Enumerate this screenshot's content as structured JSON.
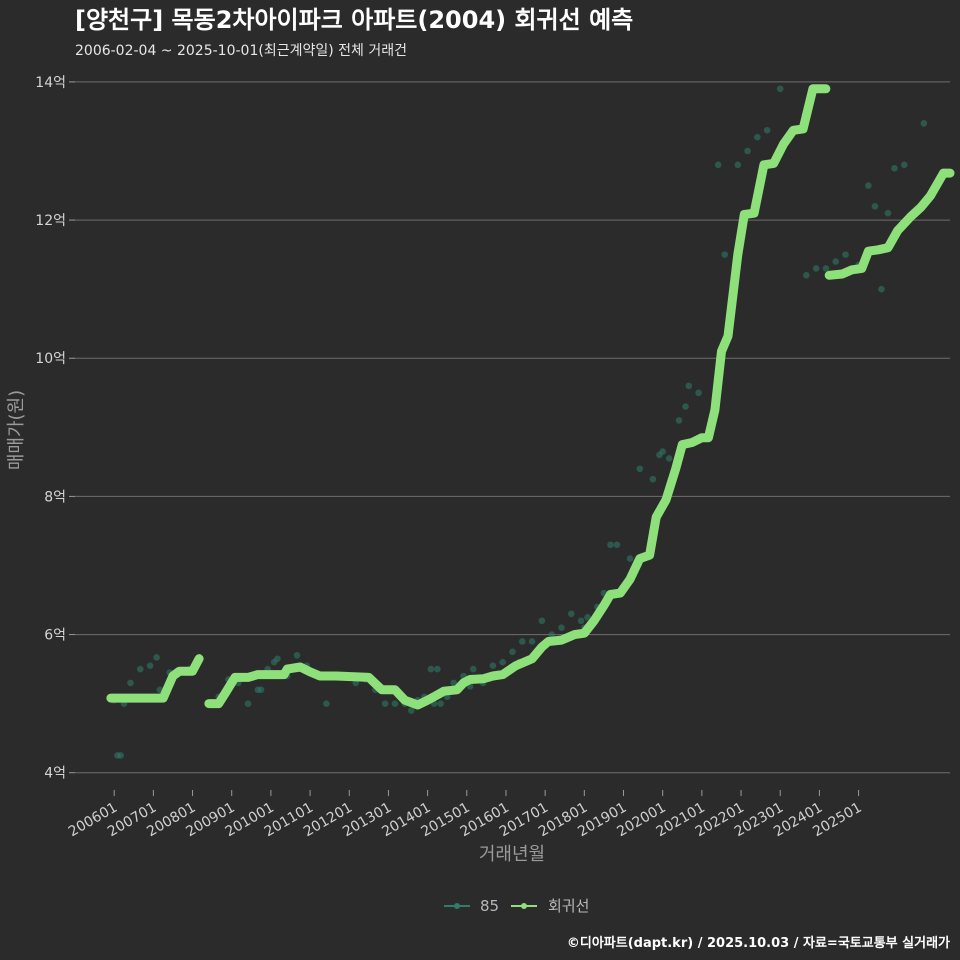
{
  "chart_data": {
    "type": "scatter",
    "title": "[양천구] 목동2차아이파크 아파트(2004) 회귀선 예측",
    "subtitle": "2006-02-04 ~ 2025-10-01(최근계약일) 전체 거래건",
    "xlabel": "거래년월",
    "ylabel": "매매가(원)",
    "caption": "©디아파트(dapt.kr) / 2025.10.03 / 자료=국토교통부 실거래가",
    "ylim": [
      3.75,
      14.1
    ],
    "xlim": [
      "2005-01",
      "2027-05"
    ],
    "y_ticks": [
      {
        "value": 4,
        "label": "4억"
      },
      {
        "value": 6,
        "label": "6억"
      },
      {
        "value": 8,
        "label": "8억"
      },
      {
        "value": 10,
        "label": "10억"
      },
      {
        "value": 12,
        "label": "12억"
      },
      {
        "value": 14,
        "label": "14억"
      }
    ],
    "x_ticks": [
      {
        "value": "2006-01",
        "label": "200601"
      },
      {
        "value": "2007-01",
        "label": "200701"
      },
      {
        "value": "2008-01",
        "label": "200801"
      },
      {
        "value": "2009-01",
        "label": "200901"
      },
      {
        "value": "2010-01",
        "label": "201001"
      },
      {
        "value": "2011-01",
        "label": "201101"
      },
      {
        "value": "2012-01",
        "label": "201201"
      },
      {
        "value": "2013-01",
        "label": "201301"
      },
      {
        "value": "2014-01",
        "label": "201401"
      },
      {
        "value": "2015-01",
        "label": "201501"
      },
      {
        "value": "2016-01",
        "label": "201601"
      },
      {
        "value": "2017-01",
        "label": "201701"
      },
      {
        "value": "2018-01",
        "label": "201801"
      },
      {
        "value": "2019-01",
        "label": "201901"
      },
      {
        "value": "2020-01",
        "label": "202001"
      },
      {
        "value": "2021-01",
        "label": "202101"
      },
      {
        "value": "2022-01",
        "label": "202201"
      },
      {
        "value": "2023-01",
        "label": "202301"
      },
      {
        "value": "2024-01",
        "label": "202401"
      },
      {
        "value": "2025-01",
        "label": "202501"
      }
    ],
    "grid": true,
    "legend_position": "bottom",
    "series": [
      {
        "name": "85",
        "kind": "points",
        "color": "#2e7d6b",
        "points": [
          [
            "2006-01",
            5.05
          ],
          [
            "2006-02",
            4.25
          ],
          [
            "2006-03",
            4.25
          ],
          [
            "2006-04",
            5.0
          ],
          [
            "2006-06",
            5.3
          ],
          [
            "2006-09",
            5.5
          ],
          [
            "2006-12",
            5.55
          ],
          [
            "2007-02",
            5.67
          ],
          [
            "2007-03",
            5.2
          ],
          [
            "2007-06",
            5.45
          ],
          [
            "2007-09",
            5.45
          ],
          [
            "2007-12",
            5.5
          ],
          [
            "2008-06",
            5.0
          ],
          [
            "2008-09",
            5.1
          ],
          [
            "2008-12",
            5.35
          ],
          [
            "2009-03",
            5.3
          ],
          [
            "2009-06",
            5.0
          ],
          [
            "2009-09",
            5.2
          ],
          [
            "2009-10",
            5.2
          ],
          [
            "2009-12",
            5.5
          ],
          [
            "2010-02",
            5.6
          ],
          [
            "2010-03",
            5.65
          ],
          [
            "2010-06",
            5.4
          ],
          [
            "2010-09",
            5.7
          ],
          [
            "2010-12",
            5.55
          ],
          [
            "2011-02",
            5.45
          ],
          [
            "2011-06",
            5.0
          ],
          [
            "2011-09",
            5.38
          ],
          [
            "2011-12",
            5.4
          ],
          [
            "2012-03",
            5.3
          ],
          [
            "2012-06",
            5.35
          ],
          [
            "2012-09",
            5.2
          ],
          [
            "2012-12",
            5.0
          ],
          [
            "2013-03",
            5.0
          ],
          [
            "2013-06",
            5.0
          ],
          [
            "2013-08",
            4.9
          ],
          [
            "2013-10",
            5.05
          ],
          [
            "2013-12",
            5.1
          ],
          [
            "2014-02",
            5.5
          ],
          [
            "2014-03",
            5.0
          ],
          [
            "2014-04",
            5.5
          ],
          [
            "2014-05",
            5.0
          ],
          [
            "2014-07",
            5.1
          ],
          [
            "2014-09",
            5.3
          ],
          [
            "2014-12",
            5.4
          ],
          [
            "2015-02",
            5.25
          ],
          [
            "2015-03",
            5.5
          ],
          [
            "2015-06",
            5.3
          ],
          [
            "2015-09",
            5.55
          ],
          [
            "2015-12",
            5.6
          ],
          [
            "2016-03",
            5.75
          ],
          [
            "2016-05",
            5.6
          ],
          [
            "2016-06",
            5.9
          ],
          [
            "2016-09",
            5.9
          ],
          [
            "2016-12",
            6.2
          ],
          [
            "2017-03",
            6.0
          ],
          [
            "2017-06",
            6.1
          ],
          [
            "2017-09",
            6.3
          ],
          [
            "2017-12",
            6.2
          ],
          [
            "2018-01",
            6.1
          ],
          [
            "2018-02",
            6.25
          ],
          [
            "2018-05",
            6.4
          ],
          [
            "2018-07",
            6.6
          ],
          [
            "2018-09",
            7.3
          ],
          [
            "2018-11",
            7.3
          ],
          [
            "2019-03",
            7.1
          ],
          [
            "2019-06",
            8.4
          ],
          [
            "2019-10",
            8.25
          ],
          [
            "2019-12",
            8.6
          ],
          [
            "2020-01",
            8.65
          ],
          [
            "2020-03",
            8.55
          ],
          [
            "2020-04",
            8.2
          ],
          [
            "2020-06",
            9.1
          ],
          [
            "2020-08",
            9.3
          ],
          [
            "2020-09",
            9.6
          ],
          [
            "2020-12",
            9.5
          ],
          [
            "2021-06",
            12.8
          ],
          [
            "2021-08",
            11.5
          ],
          [
            "2021-12",
            12.8
          ],
          [
            "2022-03",
            13.0
          ],
          [
            "2022-06",
            13.2
          ],
          [
            "2022-09",
            13.3
          ],
          [
            "2023-01",
            13.9
          ],
          [
            "2023-09",
            11.2
          ],
          [
            "2023-12",
            11.3
          ],
          [
            "2024-03",
            11.3
          ],
          [
            "2024-06",
            11.4
          ],
          [
            "2024-09",
            11.5
          ],
          [
            "2024-12",
            11.3
          ],
          [
            "2025-01",
            11.35
          ],
          [
            "2025-03",
            11.45
          ],
          [
            "2025-04",
            12.5
          ],
          [
            "2025-06",
            12.2
          ],
          [
            "2025-08",
            11.0
          ],
          [
            "2025-10",
            12.1
          ],
          [
            "2025-12",
            12.75
          ],
          [
            "2026-03",
            12.8
          ],
          [
            "2026-09",
            13.4
          ]
        ]
      },
      {
        "name": "회귀선",
        "kind": "line",
        "color": "#8ee07a",
        "segments": [
          [
            [
              "2005-12",
              5.08
            ],
            [
              "2007-02",
              5.08
            ],
            [
              "2007-04",
              5.08
            ],
            [
              "2007-07",
              5.4
            ],
            [
              "2007-09",
              5.47
            ],
            [
              "2008-01",
              5.47
            ],
            [
              "2008-03",
              5.65
            ]
          ],
          [
            [
              "2008-06",
              5.0
            ],
            [
              "2008-09",
              5.0
            ],
            [
              "2008-11",
              5.15
            ],
            [
              "2009-02",
              5.38
            ],
            [
              "2009-06",
              5.38
            ],
            [
              "2009-09",
              5.42
            ],
            [
              "2010-05",
              5.42
            ],
            [
              "2010-06",
              5.5
            ],
            [
              "2010-10",
              5.53
            ],
            [
              "2011-01",
              5.46
            ],
            [
              "2011-04",
              5.4
            ],
            [
              "2011-09",
              5.4
            ],
            [
              "2012-07",
              5.38
            ],
            [
              "2012-11",
              5.2
            ],
            [
              "2013-03",
              5.2
            ],
            [
              "2013-06",
              5.05
            ],
            [
              "2013-10",
              4.98
            ],
            [
              "2014-01",
              5.05
            ],
            [
              "2014-03",
              5.1
            ],
            [
              "2014-06",
              5.18
            ],
            [
              "2014-10",
              5.2
            ],
            [
              "2014-12",
              5.3
            ],
            [
              "2015-02",
              5.35
            ],
            [
              "2015-06",
              5.36
            ],
            [
              "2015-09",
              5.4
            ],
            [
              "2015-12",
              5.42
            ],
            [
              "2016-04",
              5.55
            ],
            [
              "2016-09",
              5.65
            ],
            [
              "2016-12",
              5.82
            ],
            [
              "2017-02",
              5.9
            ],
            [
              "2017-06",
              5.92
            ],
            [
              "2017-10",
              6.0
            ],
            [
              "2018-01",
              6.02
            ],
            [
              "2018-04",
              6.2
            ],
            [
              "2018-07",
              6.42
            ],
            [
              "2018-09",
              6.58
            ],
            [
              "2018-12",
              6.6
            ],
            [
              "2019-03",
              6.8
            ],
            [
              "2019-06",
              7.1
            ],
            [
              "2019-09",
              7.15
            ],
            [
              "2019-11",
              7.7
            ],
            [
              "2020-02",
              7.95
            ],
            [
              "2020-05",
              8.4
            ],
            [
              "2020-07",
              8.75
            ],
            [
              "2020-10",
              8.78
            ],
            [
              "2021-01",
              8.85
            ],
            [
              "2021-03",
              8.85
            ],
            [
              "2021-05",
              9.25
            ],
            [
              "2021-07",
              10.1
            ],
            [
              "2021-09",
              10.32
            ],
            [
              "2021-12",
              11.5
            ],
            [
              "2022-02",
              12.08
            ],
            [
              "2022-05",
              12.1
            ],
            [
              "2022-08",
              12.8
            ],
            [
              "2022-11",
              12.82
            ],
            [
              "2023-02",
              13.1
            ],
            [
              "2023-05",
              13.3
            ],
            [
              "2023-08",
              13.32
            ],
            [
              "2023-11",
              13.9
            ],
            [
              "2024-01",
              13.9
            ],
            [
              "2024-03",
              13.9
            ]
          ],
          [
            [
              "2024-04",
              11.2
            ],
            [
              "2024-08",
              11.22
            ],
            [
              "2024-11",
              11.28
            ],
            [
              "2025-02",
              11.3
            ],
            [
              "2025-04",
              11.55
            ],
            [
              "2025-07",
              11.57
            ],
            [
              "2025-10",
              11.6
            ],
            [
              "2026-01",
              11.85
            ],
            [
              "2026-05",
              12.05
            ],
            [
              "2026-08",
              12.18
            ],
            [
              "2026-11",
              12.35
            ],
            [
              "2027-03",
              12.68
            ],
            [
              "2027-05",
              12.68
            ]
          ]
        ]
      }
    ]
  }
}
